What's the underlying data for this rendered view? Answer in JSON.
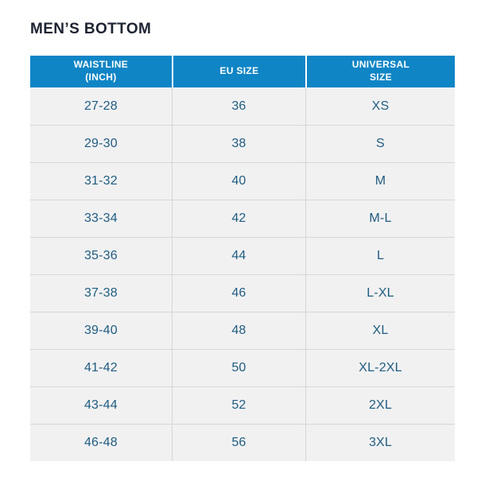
{
  "title": "MEN’S BOTTOM",
  "colors": {
    "header_bg": "#0f85c6",
    "row_bg": "#f1f1f2",
    "cell_text": "#1f5c80",
    "divider": "#d6d6d6",
    "title_text": "#1d2330",
    "page_bg": "#ffffff"
  },
  "table": {
    "columns": [
      {
        "line1": "WAISTLINE",
        "line2": "(INCH)"
      },
      {
        "line1": "EU SIZE",
        "line2": ""
      },
      {
        "line1": "UNIVERSAL",
        "line2": "SIZE"
      }
    ],
    "rows": [
      {
        "waistline": "27-28",
        "eu_size": "36",
        "universal_size": "XS"
      },
      {
        "waistline": "29-30",
        "eu_size": "38",
        "universal_size": "S"
      },
      {
        "waistline": "31-32",
        "eu_size": "40",
        "universal_size": "M"
      },
      {
        "waistline": "33-34",
        "eu_size": "42",
        "universal_size": "M-L"
      },
      {
        "waistline": "35-36",
        "eu_size": "44",
        "universal_size": "L"
      },
      {
        "waistline": "37-38",
        "eu_size": "46",
        "universal_size": "L-XL"
      },
      {
        "waistline": "39-40",
        "eu_size": "48",
        "universal_size": "XL"
      },
      {
        "waistline": "41-42",
        "eu_size": "50",
        "universal_size": "XL-2XL"
      },
      {
        "waistline": "43-44",
        "eu_size": "52",
        "universal_size": "2XL"
      },
      {
        "waistline": "46-48",
        "eu_size": "56",
        "universal_size": "3XL"
      }
    ]
  },
  "chart_data": {
    "type": "table",
    "title": "MEN’S BOTTOM",
    "columns": [
      "WAISTLINE (INCH)",
      "EU SIZE",
      "UNIVERSAL SIZE"
    ],
    "rows": [
      [
        "27-28",
        "36",
        "XS"
      ],
      [
        "29-30",
        "38",
        "S"
      ],
      [
        "31-32",
        "40",
        "M"
      ],
      [
        "33-34",
        "42",
        "M-L"
      ],
      [
        "35-36",
        "44",
        "L"
      ],
      [
        "37-38",
        "46",
        "L-XL"
      ],
      [
        "39-40",
        "48",
        "XL"
      ],
      [
        "41-42",
        "50",
        "XL-2XL"
      ],
      [
        "43-44",
        "52",
        "2XL"
      ],
      [
        "46-48",
        "56",
        "3XL"
      ]
    ]
  }
}
